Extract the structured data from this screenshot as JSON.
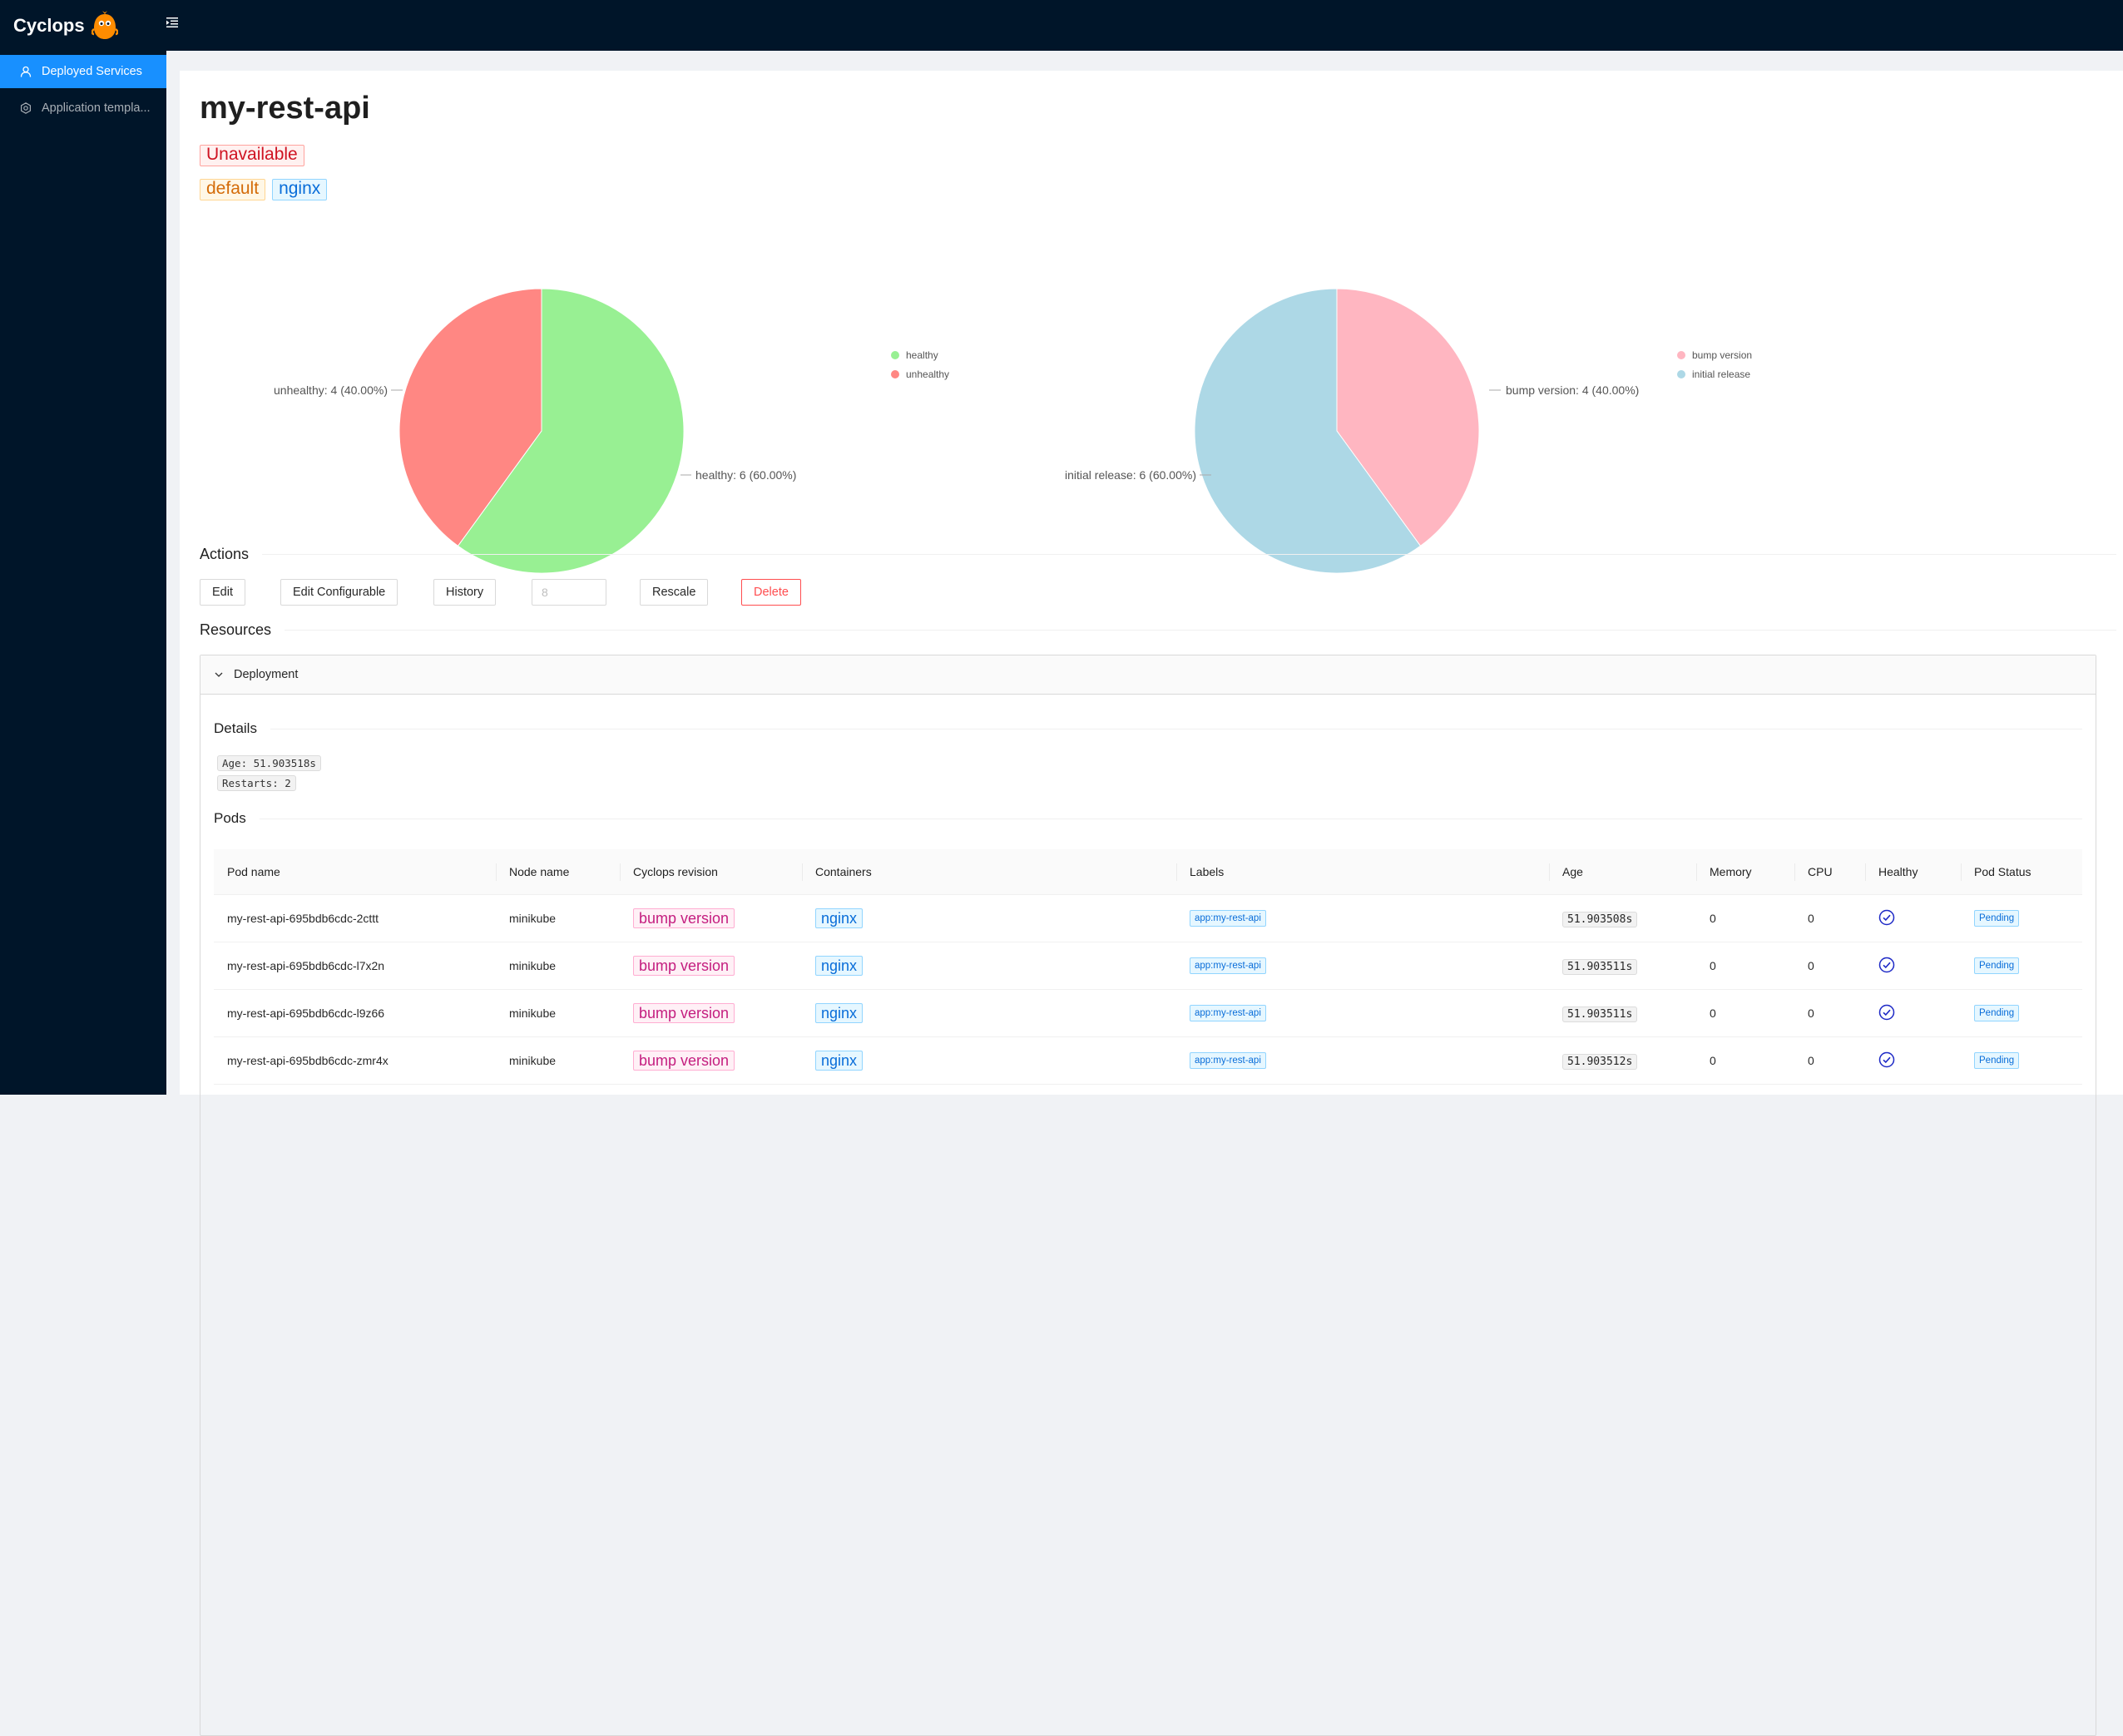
{
  "app": {
    "name": "Cyclops"
  },
  "sidebar": {
    "items": [
      {
        "label": "Deployed Services",
        "icon": "user-icon",
        "active": true
      },
      {
        "label": "Application templa...",
        "icon": "setting-icon",
        "active": false
      }
    ]
  },
  "module": {
    "title": "my-rest-api",
    "status": "Unavailable",
    "namespace": "default",
    "template": "nginx"
  },
  "charts": {
    "health": {
      "legend": [
        "healthy",
        "unhealthy"
      ],
      "labels": {
        "healthy": "healthy: 6 (60.00%)",
        "unhealthy": "unhealthy: 4 (40.00%)"
      }
    },
    "revisions": {
      "legend": [
        "bump version",
        "initial release"
      ],
      "labels": {
        "bump": "bump version: 4 (40.00%)",
        "initial": "initial release: 6 (60.00%)"
      }
    }
  },
  "chart_data": [
    {
      "type": "pie",
      "categories": [
        "healthy",
        "unhealthy"
      ],
      "values": [
        6,
        4
      ],
      "colors": [
        "#98f093",
        "#ff8783"
      ],
      "legend_position": "right"
    },
    {
      "type": "pie",
      "categories": [
        "bump version",
        "initial release"
      ],
      "values": [
        4,
        6
      ],
      "colors": [
        "#ffb6c1",
        "#add8e6"
      ],
      "legend_position": "right"
    }
  ],
  "actions": {
    "title": "Actions",
    "edit": "Edit",
    "edit_configurable": "Edit Configurable",
    "history": "History",
    "replicas_placeholder": "8",
    "rescale": "Rescale",
    "delete": "Delete"
  },
  "resources": {
    "title": "Resources",
    "deployment": {
      "header": "Deployment",
      "details_title": "Details",
      "age": "Age: 51.903518s",
      "restarts": "Restarts: 2",
      "pods_title": "Pods",
      "columns": [
        "Pod name",
        "Node name",
        "Cyclops revision",
        "Containers",
        "Labels",
        "Age",
        "Memory",
        "CPU",
        "Healthy",
        "Pod Status"
      ],
      "pods": [
        {
          "name": "my-rest-api-695bdb6cdc-2cttt",
          "node": "minikube",
          "revision": "bump version",
          "container": "nginx",
          "label": "app:my-rest-api",
          "age": "51.903508s",
          "memory": "0",
          "cpu": "0",
          "status": "Pending"
        },
        {
          "name": "my-rest-api-695bdb6cdc-l7x2n",
          "node": "minikube",
          "revision": "bump version",
          "container": "nginx",
          "label": "app:my-rest-api",
          "age": "51.903511s",
          "memory": "0",
          "cpu": "0",
          "status": "Pending"
        },
        {
          "name": "my-rest-api-695bdb6cdc-l9z66",
          "node": "minikube",
          "revision": "bump version",
          "container": "nginx",
          "label": "app:my-rest-api",
          "age": "51.903511s",
          "memory": "0",
          "cpu": "0",
          "status": "Pending"
        },
        {
          "name": "my-rest-api-695bdb6cdc-zmr4x",
          "node": "minikube",
          "revision": "bump version",
          "container": "nginx",
          "label": "app:my-rest-api",
          "age": "51.903512s",
          "memory": "0",
          "cpu": "0",
          "status": "Pending"
        }
      ]
    }
  }
}
